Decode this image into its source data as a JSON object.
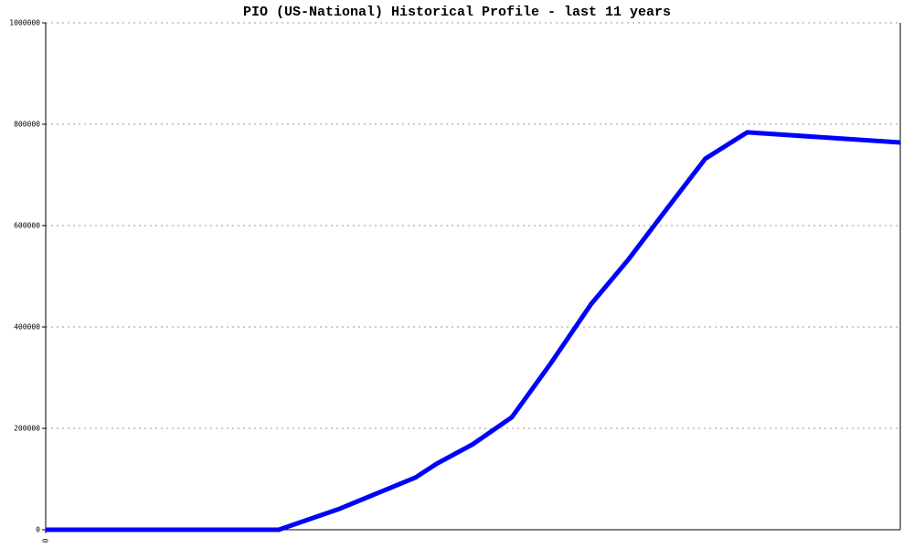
{
  "chart_data": {
    "type": "line",
    "title": "PIO (US-National) Historical Profile - last 11 years",
    "x": [
      0,
      3.0,
      3.76,
      4.76,
      5.03,
      5.49,
      6.0,
      6.5,
      7.02,
      7.5,
      7.99,
      8.49,
      9.03,
      11
    ],
    "series": [
      {
        "color": "#0000ff",
        "values": [
          0,
          0,
          40000,
          103000,
          130000,
          168000,
          222000,
          328000,
          445000,
          533000,
          632000,
          732000,
          784000,
          764000
        ]
      }
    ],
    "xlim": [
      0,
      11
    ],
    "xticks": [
      0
    ],
    "ylim": [
      0,
      1000000
    ],
    "yticks": [
      0,
      200000,
      400000,
      600000,
      800000,
      1000000
    ],
    "grid": true
  }
}
